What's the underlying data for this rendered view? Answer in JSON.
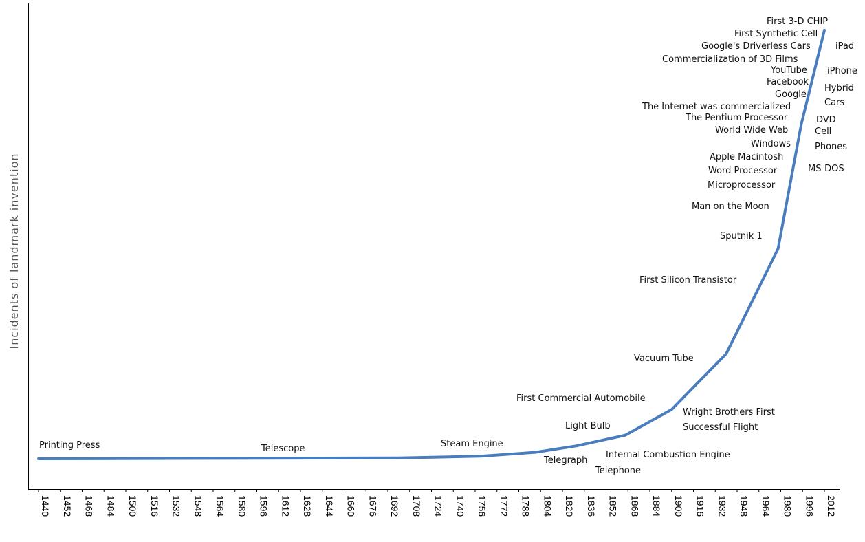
{
  "chart_data": {
    "type": "line",
    "title": "",
    "xlabel": "",
    "ylabel": "Incidents of landmark invention",
    "x_tick_labels": [
      "1440",
      "1452",
      "1468",
      "1484",
      "1500",
      "1516",
      "1532",
      "1548",
      "1564",
      "1580",
      "1596",
      "1612",
      "1628",
      "1644",
      "1660",
      "1676",
      "1692",
      "1708",
      "1724",
      "1740",
      "1756",
      "1772",
      "1788",
      "1804",
      "1820",
      "1836",
      "1852",
      "1868",
      "1884",
      "1900",
      "1916",
      "1932",
      "1948",
      "1964",
      "1980",
      "1996",
      "2012"
    ],
    "grid": false,
    "legend": "none",
    "line_color": "#4a7dbd",
    "series": [
      {
        "points": [
          {
            "x": 1440,
            "y": 0
          },
          {
            "x": 1700,
            "y": 0.2
          },
          {
            "x": 1760,
            "y": 0.6
          },
          {
            "x": 1800,
            "y": 1.5
          },
          {
            "x": 1830,
            "y": 3
          },
          {
            "x": 1866,
            "y": 5.5
          },
          {
            "x": 1900,
            "y": 11.5
          },
          {
            "x": 1940,
            "y": 24.5
          },
          {
            "x": 1978,
            "y": 49
          },
          {
            "x": 1995,
            "y": 78
          },
          {
            "x": 2012,
            "y": 100
          }
        ]
      }
    ],
    "annotations": [
      "Printing Press",
      "Telescope",
      "Steam Engine",
      "Light Bulb",
      "Telegraph",
      "Telephone",
      "Internal Combustion Engine",
      "First Commercial Automobile",
      "Wright Brothers First",
      "Successful Flight",
      "Vacuum Tube",
      "First Silicon Transistor",
      "Sputnik 1",
      "Man on the Moon",
      "Microprocessor",
      "Word Processor",
      "Apple Macintosh",
      "Windows",
      "World Wide Web",
      "The Pentium Processor",
      "The Internet was commercialized",
      "Google",
      "Facebook",
      "YouTube",
      "Commercialization of 3D Films",
      "Google's Driverless Cars",
      "First Synthetic Cell",
      "First 3-D CHIP",
      "iPad",
      "iPhone",
      "Hybrid",
      "Cars",
      "DVD",
      "Cell",
      "Phones",
      "MS-DOS"
    ]
  }
}
